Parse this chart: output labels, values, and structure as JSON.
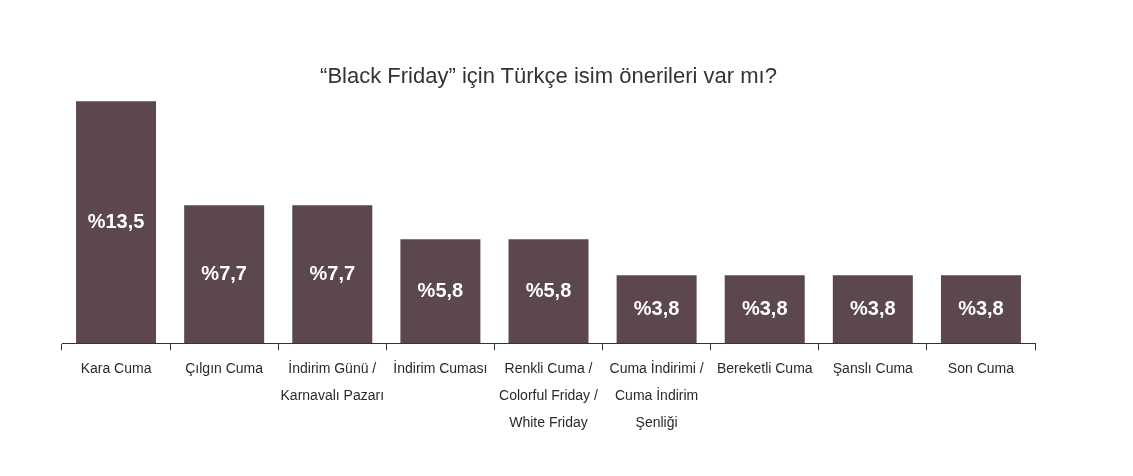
{
  "chart_data": {
    "type": "bar",
    "title": "“Black Friday” için Türkçe isim önerileri var mı?",
    "categories": [
      "Kara Cuma",
      "Çılgın Cuma",
      "İndirim Günü / Karnavalı Pazarı",
      "İndirim Cuması",
      "Renkli Cuma / Colorful Friday / White Friday",
      "Cuma İndirimi / Cuma İndirim Şenliği",
      "Bereketli Cuma",
      "Şanslı Cuma",
      "Son Cuma"
    ],
    "values": [
      13.5,
      7.7,
      7.7,
      5.8,
      5.8,
      3.8,
      3.8,
      3.8,
      3.8
    ],
    "value_labels": [
      "%13,5",
      "%7,7",
      "%7,7",
      "%5,8",
      "%5,8",
      "%3,8",
      "%3,8",
      "%3,8",
      "%3,8"
    ],
    "color": "#5c474d",
    "tick_labels": "x"
  }
}
